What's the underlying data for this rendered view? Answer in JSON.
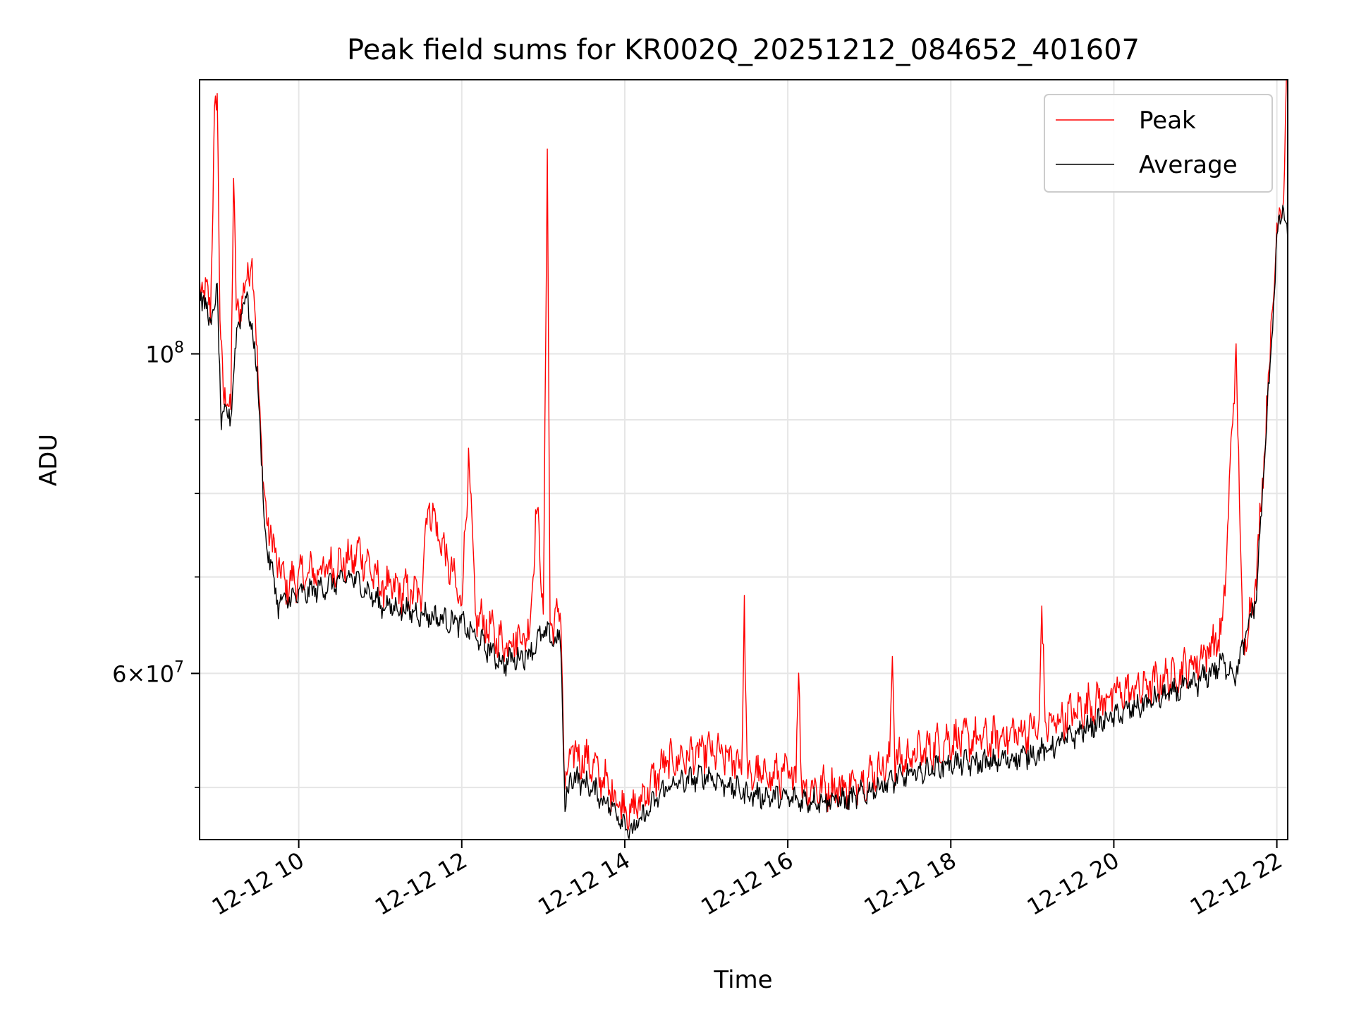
{
  "chart_data": {
    "type": "line",
    "title": "Peak field sums for KR002Q_20251212_084652_401607",
    "xlabel": "Time",
    "ylabel": "ADU",
    "yscale": "log",
    "xlim": [
      "2025-12-12 08:47",
      "2025-12-12 22:08"
    ],
    "ylim": [
      46000000.0,
      155000000.0
    ],
    "x_ticks": [
      "12-12 10",
      "12-12 12",
      "12-12 14",
      "12-12 16",
      "12-12 18",
      "12-12 20",
      "12-12 22"
    ],
    "y_ticks": [
      {
        "value": 100000000.0,
        "mantissa": "",
        "exponent": "8"
      },
      {
        "value": 60000000.0,
        "mantissa": "6",
        "exponent": "7"
      }
    ],
    "y_minor_ticks": [
      50000000.0,
      70000000.0,
      80000000.0,
      90000000.0
    ],
    "grid": true,
    "legend_position": "top-right",
    "series": [
      {
        "name": "Peak",
        "color": "#ff0000",
        "points": [
          [
            "2025-12-12 08:47",
            112000000.0
          ],
          [
            "2025-12-12 08:55",
            108000000.0
          ],
          [
            "2025-12-12 08:58",
            145000000.0
          ],
          [
            "2025-12-12 09:00",
            150000000.0
          ],
          [
            "2025-12-12 09:02",
            108000000.0
          ],
          [
            "2025-12-12 09:05",
            92000000.0
          ],
          [
            "2025-12-12 09:10",
            93000000.0
          ],
          [
            "2025-12-12 09:12",
            132000000.0
          ],
          [
            "2025-12-12 09:14",
            107000000.0
          ],
          [
            "2025-12-12 09:20",
            110000000.0
          ],
          [
            "2025-12-12 09:25",
            118000000.0
          ],
          [
            "2025-12-12 09:30",
            98000000.0
          ],
          [
            "2025-12-12 09:34",
            80000000.0
          ],
          [
            "2025-12-12 09:40",
            74000000.0
          ],
          [
            "2025-12-12 09:50",
            69000000.0
          ],
          [
            "2025-12-12 10:00",
            70000000.0
          ],
          [
            "2025-12-12 10:20",
            71000000.0
          ],
          [
            "2025-12-12 10:40",
            72000000.0
          ],
          [
            "2025-12-12 10:45",
            73000000.0
          ],
          [
            "2025-12-12 11:00",
            69000000.0
          ],
          [
            "2025-12-12 11:30",
            68000000.0
          ],
          [
            "2025-12-12 11:35",
            79000000.0
          ],
          [
            "2025-12-12 12:00",
            67000000.0
          ],
          [
            "2025-12-12 12:05",
            85000000.0
          ],
          [
            "2025-12-12 12:10",
            66000000.0
          ],
          [
            "2025-12-12 12:30",
            63000000.0
          ],
          [
            "2025-12-12 12:50",
            64000000.0
          ],
          [
            "2025-12-12 12:55",
            79000000.0
          ],
          [
            "2025-12-12 13:00",
            66000000.0
          ],
          [
            "2025-12-12 13:03",
            138000000.0
          ],
          [
            "2025-12-12 13:05",
            65000000.0
          ],
          [
            "2025-12-12 13:13",
            66000000.0
          ],
          [
            "2025-12-12 13:16",
            49000000.0
          ],
          [
            "2025-12-12 13:20",
            53000000.0
          ],
          [
            "2025-12-12 13:35",
            52000000.0
          ],
          [
            "2025-12-12 13:55",
            49000000.0
          ],
          [
            "2025-12-12 14:05",
            48000000.0
          ],
          [
            "2025-12-12 14:30",
            52000000.0
          ],
          [
            "2025-12-12 15:00",
            53000000.0
          ],
          [
            "2025-12-12 15:26",
            52000000.0
          ],
          [
            "2025-12-12 15:28",
            67000000.0
          ],
          [
            "2025-12-12 15:30",
            51000000.0
          ],
          [
            "2025-12-12 16:06",
            51000000.0
          ],
          [
            "2025-12-12 16:08",
            62000000.0
          ],
          [
            "2025-12-12 16:10",
            50000000.0
          ],
          [
            "2025-12-12 16:45",
            50000000.0
          ],
          [
            "2025-12-12 17:15",
            52000000.0
          ],
          [
            "2025-12-12 17:17",
            63000000.0
          ],
          [
            "2025-12-12 17:19",
            52000000.0
          ],
          [
            "2025-12-12 18:00",
            54000000.0
          ],
          [
            "2025-12-12 18:30",
            54000000.0
          ],
          [
            "2025-12-12 19:05",
            55000000.0
          ],
          [
            "2025-12-12 19:07",
            66000000.0
          ],
          [
            "2025-12-12 19:10",
            55000000.0
          ],
          [
            "2025-12-12 19:40",
            57000000.0
          ],
          [
            "2025-12-12 20:00",
            58000000.0
          ],
          [
            "2025-12-12 20:30",
            59000000.0
          ],
          [
            "2025-12-12 21:00",
            61000000.0
          ],
          [
            "2025-12-12 21:20",
            64000000.0
          ],
          [
            "2025-12-12 21:30",
            101000000.0
          ],
          [
            "2025-12-12 21:35",
            62000000.0
          ],
          [
            "2025-12-12 21:45",
            70000000.0
          ],
          [
            "2025-12-12 21:55",
            100000000.0
          ],
          [
            "2025-12-12 22:00",
            122000000.0
          ],
          [
            "2025-12-12 22:05",
            130000000.0
          ],
          [
            "2025-12-12 22:07",
            155000000.0
          ]
        ]
      },
      {
        "name": "Average",
        "color": "#000000",
        "points": [
          [
            "2025-12-12 08:47",
            111000000.0
          ],
          [
            "2025-12-12 08:55",
            105000000.0
          ],
          [
            "2025-12-12 09:00",
            110000000.0
          ],
          [
            "2025-12-12 09:03",
            90000000.0
          ],
          [
            "2025-12-12 09:10",
            91000000.0
          ],
          [
            "2025-12-12 09:15",
            105000000.0
          ],
          [
            "2025-12-12 09:22",
            110000000.0
          ],
          [
            "2025-12-12 09:30",
            96000000.0
          ],
          [
            "2025-12-12 09:35",
            75000000.0
          ],
          [
            "2025-12-12 09:45",
            67000000.0
          ],
          [
            "2025-12-12 10:00",
            68000000.0
          ],
          [
            "2025-12-12 10:20",
            69000000.0
          ],
          [
            "2025-12-12 10:40",
            70000000.0
          ],
          [
            "2025-12-12 11:00",
            67000000.0
          ],
          [
            "2025-12-12 11:30",
            66000000.0
          ],
          [
            "2025-12-12 12:00",
            65000000.0
          ],
          [
            "2025-12-12 12:30",
            61000000.0
          ],
          [
            "2025-12-12 12:50",
            62000000.0
          ],
          [
            "2025-12-12 13:00",
            64000000.0
          ],
          [
            "2025-12-12 13:13",
            63000000.0
          ],
          [
            "2025-12-12 13:16",
            48000000.0
          ],
          [
            "2025-12-12 13:20",
            51000000.0
          ],
          [
            "2025-12-12 13:35",
            50000000.0
          ],
          [
            "2025-12-12 13:55",
            48000000.0
          ],
          [
            "2025-12-12 14:05",
            46500000.0
          ],
          [
            "2025-12-12 14:30",
            50000000.0
          ],
          [
            "2025-12-12 15:00",
            51000000.0
          ],
          [
            "2025-12-12 15:30",
            49500000.0
          ],
          [
            "2025-12-12 16:10",
            49000000.0
          ],
          [
            "2025-12-12 16:45",
            49000000.0
          ],
          [
            "2025-12-12 17:15",
            50500000.0
          ],
          [
            "2025-12-12 18:00",
            52000000.0
          ],
          [
            "2025-12-12 18:30",
            52000000.0
          ],
          [
            "2025-12-12 19:10",
            53000000.0
          ],
          [
            "2025-12-12 19:40",
            55000000.0
          ],
          [
            "2025-12-12 20:00",
            56000000.0
          ],
          [
            "2025-12-12 20:30",
            57500000.0
          ],
          [
            "2025-12-12 21:00",
            59000000.0
          ],
          [
            "2025-12-12 21:20",
            61000000.0
          ],
          [
            "2025-12-12 21:30",
            60000000.0
          ],
          [
            "2025-12-12 21:45",
            68000000.0
          ],
          [
            "2025-12-12 21:55",
            98000000.0
          ],
          [
            "2025-12-12 22:00",
            120000000.0
          ],
          [
            "2025-12-12 22:05",
            127000000.0
          ],
          [
            "2025-12-12 22:08",
            120000000.0
          ]
        ]
      }
    ]
  }
}
